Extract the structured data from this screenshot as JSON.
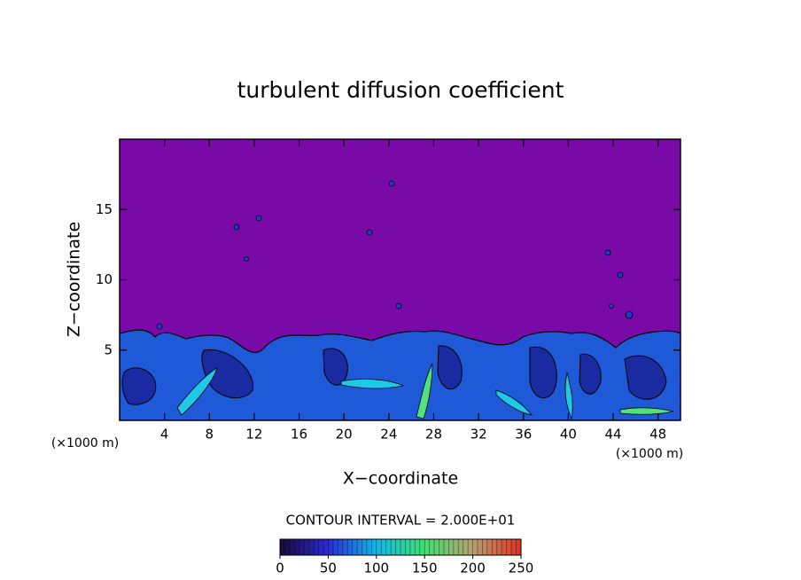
{
  "chart_data": {
    "type": "contour",
    "title": "turbulent diffusion coefficient",
    "xlabel": "X−coordinate",
    "ylabel": "Z−coordinate",
    "x_unit_label": "(×1000 m)",
    "y_unit_label": "(×1000 m)",
    "xlim": [
      0,
      50
    ],
    "ylim": [
      0,
      20
    ],
    "xticks": [
      4,
      8,
      12,
      16,
      20,
      24,
      28,
      32,
      36,
      40,
      44,
      48
    ],
    "yticks": [
      5,
      10,
      15
    ],
    "contour_interval_label": "CONTOUR INTERVAL = 2.000E+01",
    "colorbar": {
      "lim": [
        0,
        250
      ],
      "ticks": [
        0,
        50,
        100,
        150,
        200,
        250
      ],
      "colors": [
        "#1a0838",
        "#2a2ad8",
        "#10b8e8",
        "#40e070",
        "#b8a070",
        "#e03020"
      ]
    }
  }
}
